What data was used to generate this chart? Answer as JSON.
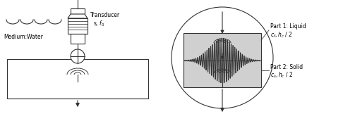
{
  "bg_color": "#ffffff",
  "fig_width": 4.86,
  "fig_height": 1.62,
  "dpi": 100,
  "transducer_label": "Transducer",
  "transducer_sublabel": "s, $f_0$",
  "medium_label": "Medium:Water",
  "part1_label": "Part 1: Liquid",
  "part1_sublabel": "$c_f, h_c$ / 2",
  "part2_label": "Part 2: Solid",
  "part2_sublabel": "$c_s, h_c$ / 2",
  "gray_color": "#d0d0d0",
  "dark_color": "#333333",
  "line_color": "#333333"
}
